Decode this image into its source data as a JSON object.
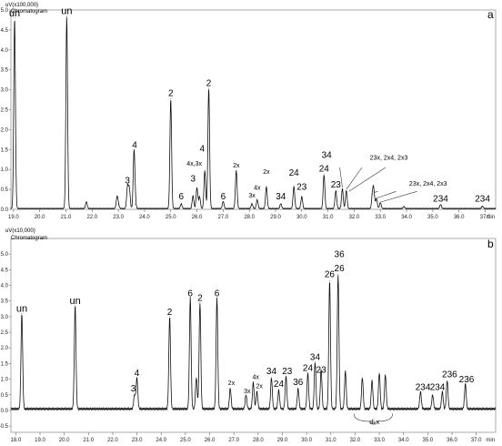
{
  "chart_data": [
    {
      "type": "line",
      "panel_letter": "a",
      "yunit": "uV(x100,000)",
      "subtitle": "Chromatogram",
      "xunit": "min",
      "xlim": [
        18.9,
        37.4
      ],
      "ylim": [
        0,
        5.0
      ],
      "xticks": [
        "19.0",
        "20.0",
        "21.0",
        "22.0",
        "23.0",
        "24.0",
        "25.0",
        "26.0",
        "27.0",
        "28.0",
        "29.0",
        "30.0",
        "31.0",
        "32.0",
        "33.0",
        "34.0",
        "35.0",
        "36.0",
        "37.0"
      ],
      "yticks": [
        "0.0",
        "0.5",
        "1.0",
        "1.5",
        "2.0",
        "2.5",
        "3.0",
        "3.5",
        "4.0",
        "4.5",
        "5.0"
      ],
      "series": [
        {
          "x": [
            19.04,
            21.03,
            21.78,
            22.95,
            23.0,
            23.35,
            23.42,
            23.6,
            23.65,
            25.0,
            25.4,
            25.85,
            26.0,
            26.1,
            26.3,
            26.45,
            27.0,
            27.5,
            28.1,
            28.3,
            28.65,
            29.2,
            29.7,
            30.0,
            30.85,
            31.3,
            31.55,
            31.7,
            32.7,
            32.75,
            32.85,
            33.0,
            33.9,
            35.3,
            36.9
          ],
          "y": [
            4.78,
            4.82,
            0.17,
            0.28,
            0.1,
            0.55,
            0.5,
            1.45,
            0.1,
            2.75,
            0.12,
            0.32,
            0.52,
            0.3,
            0.95,
            3.02,
            0.18,
            0.95,
            0.12,
            0.22,
            0.55,
            0.12,
            0.55,
            0.3,
            0.85,
            0.45,
            0.5,
            0.45,
            0.35,
            0.42,
            0.25,
            0.15,
            0.05,
            0.1,
            0.06
          ]
        }
      ],
      "peak_labels": [
        {
          "text": "un",
          "x": 19.04,
          "y": 4.8
        },
        {
          "text": "un",
          "x": 21.03,
          "y": 4.85
        },
        {
          "text": "3",
          "x": 23.35,
          "y": 0.6
        },
        {
          "text": "4",
          "x": 23.62,
          "y": 1.5
        },
        {
          "text": "2",
          "x": 25.0,
          "y": 2.8
        },
        {
          "text": "6",
          "x": 25.4,
          "y": 0.2
        },
        {
          "text": "4x,3x",
          "x": 25.9,
          "y": 1.05
        },
        {
          "text": "3",
          "x": 25.85,
          "y": 0.65
        },
        {
          "text": "4",
          "x": 26.2,
          "y": 1.4
        },
        {
          "text": "2",
          "x": 26.45,
          "y": 3.05
        },
        {
          "text": "6",
          "x": 27.0,
          "y": 0.2
        },
        {
          "text": "2x",
          "x": 27.5,
          "y": 1.0
        },
        {
          "text": "3x",
          "x": 28.1,
          "y": 0.25
        },
        {
          "text": "4x",
          "x": 28.3,
          "y": 0.45
        },
        {
          "text": "2x",
          "x": 28.65,
          "y": 0.85
        },
        {
          "text": "34",
          "x": 29.2,
          "y": 0.2
        },
        {
          "text": "24",
          "x": 29.7,
          "y": 0.8
        },
        {
          "text": "23",
          "x": 30.0,
          "y": 0.45
        },
        {
          "text": "34",
          "x": 30.95,
          "y": 1.25
        },
        {
          "text": "24",
          "x": 30.85,
          "y": 0.9
        },
        {
          "text": "23",
          "x": 31.3,
          "y": 0.5
        },
        {
          "text": "23x, 2x4, 2x3",
          "x": 32.6,
          "y": 1.2
        },
        {
          "text": "23x, 2x4, 2x3",
          "x": 34.1,
          "y": 0.55
        },
        {
          "text": "234",
          "x": 35.3,
          "y": 0.15
        },
        {
          "text": "234",
          "x": 36.9,
          "y": 0.15
        }
      ]
    },
    {
      "type": "line",
      "panel_letter": "b",
      "yunit": "uV(x10,000)",
      "subtitle": "Chromatogram",
      "xunit": "min",
      "xlim": [
        17.8,
        37.8
      ],
      "ylim": [
        -0.7,
        5.5
      ],
      "xticks": [
        "18.0",
        "19.0",
        "20.0",
        "21.0",
        "22.0",
        "23.0",
        "24.0",
        "25.0",
        "26.0",
        "27.0",
        "28.0",
        "29.0",
        "30.0",
        "31.0",
        "32.0",
        "33.0",
        "34.0",
        "35.0",
        "36.0",
        "37.0"
      ],
      "yticks": [
        "-0.5",
        "0.0",
        "0.5",
        "1.0",
        "1.5",
        "2.0",
        "2.5",
        "3.0",
        "3.5",
        "4.0",
        "4.5",
        "5.0"
      ],
      "series": [
        {
          "x": [
            18.25,
            20.45,
            22.9,
            23.0,
            24.35,
            25.2,
            25.45,
            25.6,
            26.3,
            26.85,
            27.5,
            27.8,
            27.95,
            28.55,
            28.85,
            29.15,
            29.65,
            30.05,
            30.35,
            30.6,
            30.95,
            31.3,
            31.6,
            32.3,
            32.7,
            33.0,
            33.25,
            34.7,
            35.2,
            35.6,
            35.8,
            36.55
          ],
          "y": [
            3.05,
            3.3,
            0.45,
            1.0,
            2.95,
            3.55,
            1.0,
            3.4,
            3.55,
            0.65,
            0.45,
            0.85,
            0.55,
            1.0,
            0.6,
            1.05,
            0.65,
            1.15,
            1.5,
            1.25,
            4.1,
            4.3,
            1.2,
            1.0,
            0.9,
            1.15,
            1.1,
            0.55,
            0.45,
            0.55,
            0.9,
            0.8
          ]
        }
      ],
      "peak_labels": [
        {
          "text": "un",
          "x": 18.25,
          "y": 3.1
        },
        {
          "text": "un",
          "x": 20.45,
          "y": 3.35
        },
        {
          "text": "3",
          "x": 22.85,
          "y": 0.55
        },
        {
          "text": "4",
          "x": 23.0,
          "y": 1.05
        },
        {
          "text": "2",
          "x": 24.35,
          "y": 3.0
        },
        {
          "text": "6",
          "x": 25.2,
          "y": 3.6
        },
        {
          "text": "2",
          "x": 25.6,
          "y": 3.45
        },
        {
          "text": "6",
          "x": 26.3,
          "y": 3.6
        },
        {
          "text": "2x",
          "x": 26.9,
          "y": 0.75
        },
        {
          "text": "4x",
          "x": 27.9,
          "y": 0.95
        },
        {
          "text": "3x",
          "x": 27.55,
          "y": 0.5
        },
        {
          "text": "2x",
          "x": 28.05,
          "y": 0.65
        },
        {
          "text": "34",
          "x": 28.55,
          "y": 1.1
        },
        {
          "text": "24",
          "x": 28.85,
          "y": 0.7
        },
        {
          "text": "23",
          "x": 29.2,
          "y": 1.1
        },
        {
          "text": "36",
          "x": 29.65,
          "y": 0.75
        },
        {
          "text": "24",
          "x": 30.05,
          "y": 1.2
        },
        {
          "text": "34",
          "x": 30.35,
          "y": 1.55
        },
        {
          "text": "23",
          "x": 30.6,
          "y": 1.15
        },
        {
          "text": "26",
          "x": 30.95,
          "y": 4.2
        },
        {
          "text": "36",
          "x": 31.35,
          "y": 4.85
        },
        {
          "text": "26",
          "x": 31.35,
          "y": 4.4
        },
        {
          "text": "di,x",
          "x": 32.8,
          "y": -0.5
        },
        {
          "text": "234",
          "x": 34.8,
          "y": 0.6
        },
        {
          "text": "234",
          "x": 35.4,
          "y": 0.6
        },
        {
          "text": "236",
          "x": 35.9,
          "y": 1.0
        },
        {
          "text": "236",
          "x": 36.6,
          "y": 0.85
        }
      ]
    }
  ]
}
